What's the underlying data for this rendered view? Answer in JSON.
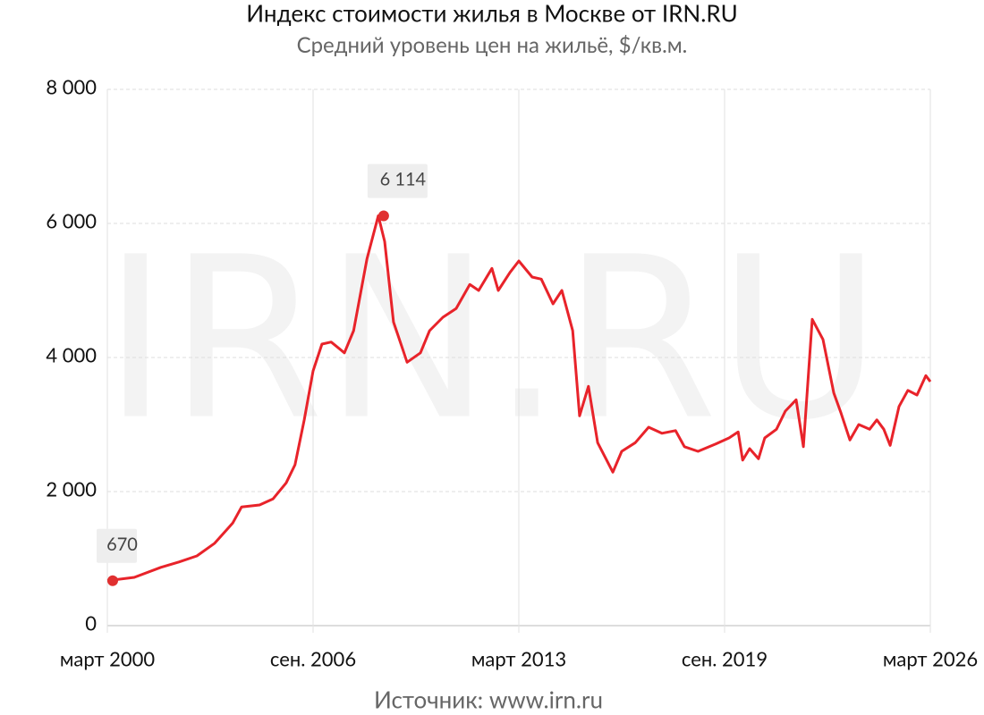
{
  "chart_data": {
    "type": "line",
    "title": "Индекс стоимости жилья в Москве от IRN.RU",
    "subtitle": "Средний уровень цен на жильё, $/кв.м.",
    "source": "Источник: www.irn.ru",
    "watermark": "IRN.RU",
    "color": "#e8232a",
    "x": [
      2000.17,
      2001.02,
      2001.86,
      2002.43,
      2003.0,
      2003.56,
      2004.13,
      2004.41,
      2004.98,
      2005.4,
      2005.82,
      2006.1,
      2006.39,
      2006.67,
      2006.95,
      2007.24,
      2007.66,
      2007.95,
      2008.37,
      2008.73,
      2008.93,
      2009.21,
      2009.64,
      2010.06,
      2010.35,
      2010.77,
      2011.19,
      2011.62,
      2011.9,
      2012.32,
      2012.52,
      2012.89,
      2013.17,
      2013.59,
      2013.88,
      2014.25,
      2014.53,
      2014.87,
      2015.09,
      2015.37,
      2015.66,
      2016.14,
      2016.42,
      2016.85,
      2017.27,
      2017.69,
      2018.12,
      2018.4,
      2018.83,
      2019.39,
      2019.81,
      2020.1,
      2020.24,
      2020.46,
      2020.74,
      2020.94,
      2021.31,
      2021.59,
      2021.93,
      2022.16,
      2022.44,
      2022.78,
      2023.12,
      2023.35,
      2023.63,
      2023.91,
      2024.25,
      2024.48,
      2024.7,
      2024.9,
      2025.18,
      2025.46,
      2025.75,
      2026.03,
      2026.17
    ],
    "values": [
      670,
      720,
      870,
      950,
      1040,
      1230,
      1530,
      1770,
      1800,
      1890,
      2130,
      2400,
      3070,
      3800,
      4200,
      4230,
      4070,
      4400,
      5470,
      6114,
      5730,
      4530,
      3930,
      4070,
      4400,
      4600,
      4730,
      5090,
      5000,
      5330,
      5000,
      5270,
      5440,
      5200,
      5170,
      4800,
      5000,
      4400,
      3130,
      3570,
      2730,
      2290,
      2600,
      2730,
      2960,
      2870,
      2910,
      2670,
      2600,
      2710,
      2800,
      2890,
      2470,
      2640,
      2490,
      2800,
      2930,
      3200,
      3370,
      2670,
      4570,
      4270,
      3470,
      3170,
      2770,
      3000,
      2930,
      3070,
      2930,
      2690,
      3270,
      3510,
      3440,
      3730,
      3640
    ],
    "value_labels": [
      "670",
      null,
      null,
      null,
      null,
      null,
      null,
      null,
      null,
      null,
      null,
      null,
      null,
      null,
      null,
      null,
      null,
      null,
      null,
      "6 114",
      null,
      null,
      null,
      null,
      null,
      null,
      null,
      null,
      null,
      null,
      null,
      null,
      null,
      null,
      null,
      null,
      null,
      null,
      null,
      null,
      null,
      null,
      null,
      null,
      null,
      null,
      null,
      null,
      null,
      null,
      null,
      null,
      null,
      null,
      null,
      null,
      null,
      null,
      null,
      null,
      null,
      null,
      null,
      null,
      null,
      null,
      null,
      null,
      null,
      null,
      null,
      null,
      null,
      null,
      null
    ],
    "xlim": [
      2000.17,
      2026.17
    ],
    "xticks": [
      {
        "value": 2000.17,
        "label": "март 2000"
      },
      {
        "value": 2006.67,
        "label": "сен. 2006"
      },
      {
        "value": 2013.17,
        "label": "март 2013"
      },
      {
        "value": 2019.67,
        "label": "сен. 2019"
      },
      {
        "value": 2026.17,
        "label": "март 2026"
      }
    ],
    "ylim": [
      0,
      8000
    ],
    "yticks": [
      0,
      {
        "value": 2000,
        "label": "2 000"
      },
      {
        "value": 4000,
        "label": "4 000"
      },
      {
        "value": 6000,
        "label": "6 000"
      },
      {
        "value": 8000,
        "label": "8 000"
      }
    ],
    "grid": true
  }
}
